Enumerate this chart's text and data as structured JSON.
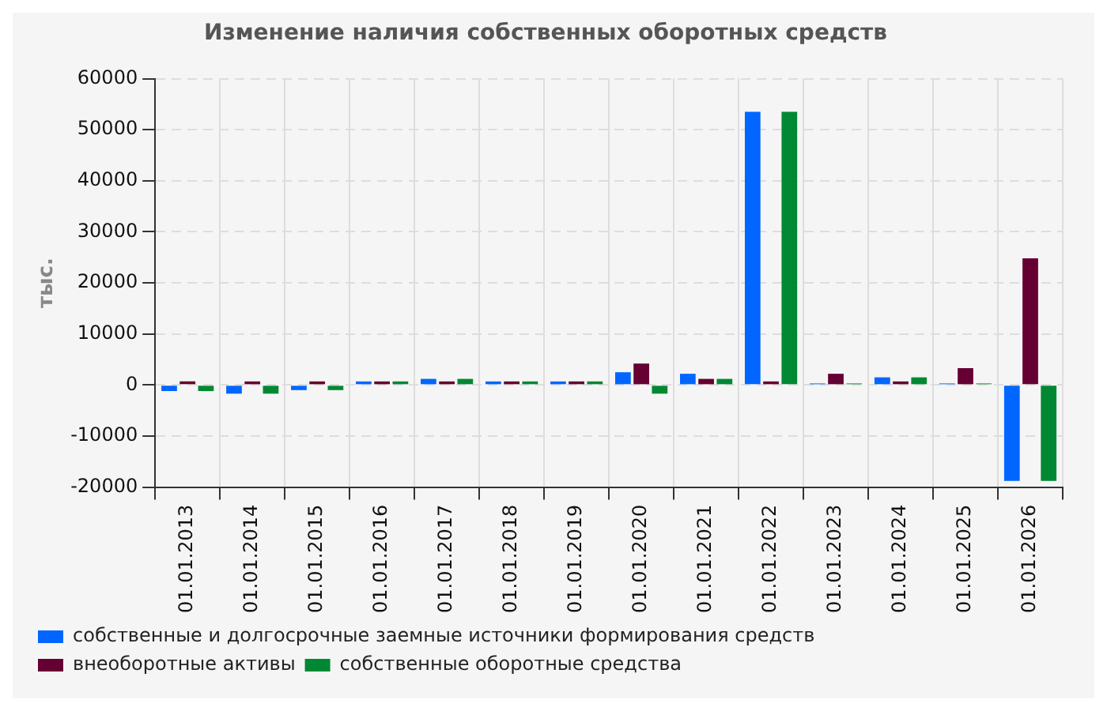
{
  "chart_data": {
    "type": "bar",
    "title": "Изменение наличия собственных оборотных средств",
    "ylabel": "тыс.",
    "categories": [
      "01.01.2013",
      "01.01.2014",
      "01.01.2015",
      "01.01.2016",
      "01.01.2017",
      "01.01.2018",
      "01.01.2019",
      "01.01.2020",
      "01.01.2021",
      "01.01.2022",
      "01.01.2023",
      "01.01.2024",
      "01.01.2025",
      "01.01.2026"
    ],
    "series": [
      {
        "name": "собственные и долгосрочные заемные источники формирования средств",
        "color": "#0066ff",
        "values": [
          -1200,
          -1700,
          -1000,
          700,
          1200,
          700,
          700,
          2500,
          2200,
          53500,
          300,
          1500,
          300,
          -18800
        ]
      },
      {
        "name": "внеоборотные активы",
        "color": "#660033",
        "values": [
          700,
          700,
          700,
          700,
          700,
          700,
          700,
          4200,
          1200,
          700,
          2200,
          700,
          3300,
          24800
        ]
      },
      {
        "name": "собственные оборотные средства",
        "color": "#008833",
        "values": [
          -1200,
          -1700,
          -1000,
          700,
          1200,
          700,
          700,
          -1700,
          1200,
          53500,
          300,
          1500,
          300,
          -18800
        ]
      }
    ],
    "ylim": [
      -20000,
      60000
    ],
    "yticks": [
      -20000,
      -10000,
      0,
      10000,
      20000,
      30000,
      40000,
      50000,
      60000
    ],
    "grid": true,
    "legend": "bottom"
  }
}
